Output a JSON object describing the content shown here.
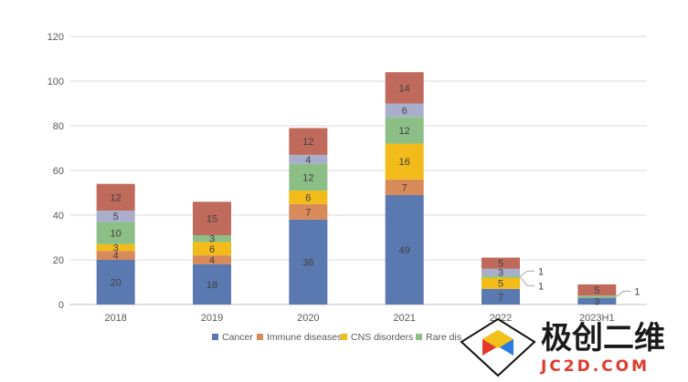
{
  "chart_data": {
    "type": "bar",
    "stacked": true,
    "categories": [
      "2018",
      "2019",
      "2020",
      "2021",
      "2022",
      "2023H1"
    ],
    "series": [
      {
        "name": "Cancer",
        "color": "#5b79b1",
        "values": [
          20,
          18,
          38,
          49,
          7,
          3
        ]
      },
      {
        "name": "Immune diseases",
        "color": "#d98a5a",
        "values": [
          4,
          4,
          7,
          7,
          0,
          0
        ]
      },
      {
        "name": "CNS disorders",
        "color": "#f2bb1a",
        "values": [
          3,
          6,
          6,
          16,
          5,
          0
        ]
      },
      {
        "name": "Rare diseases",
        "color": "#8cbf86",
        "values": [
          10,
          3,
          12,
          12,
          1,
          1
        ]
      },
      {
        "name": "",
        "color": "#a9aecd",
        "values": [
          5,
          0,
          4,
          6,
          3,
          0
        ]
      },
      {
        "name": "",
        "color": "#bf6a5a",
        "values": [
          12,
          15,
          12,
          14,
          5,
          5
        ]
      }
    ],
    "ylim": [
      0,
      120
    ],
    "yticks": [
      0,
      20,
      40,
      60,
      80,
      100,
      120
    ],
    "grid": true,
    "legend_position": "bottom",
    "legend_visible": [
      "Cancer",
      "Immune diseases",
      "CNS disorders",
      "Rare dis"
    ],
    "callouts": [
      {
        "category": "2019",
        "text": "1"
      },
      {
        "category": "2022",
        "text": "1"
      },
      {
        "category": "2022",
        "text": "1"
      },
      {
        "category": "2023H1",
        "text": "1"
      }
    ]
  },
  "watermark": {
    "name": "极创二维",
    "url": "JC2D.COM"
  }
}
